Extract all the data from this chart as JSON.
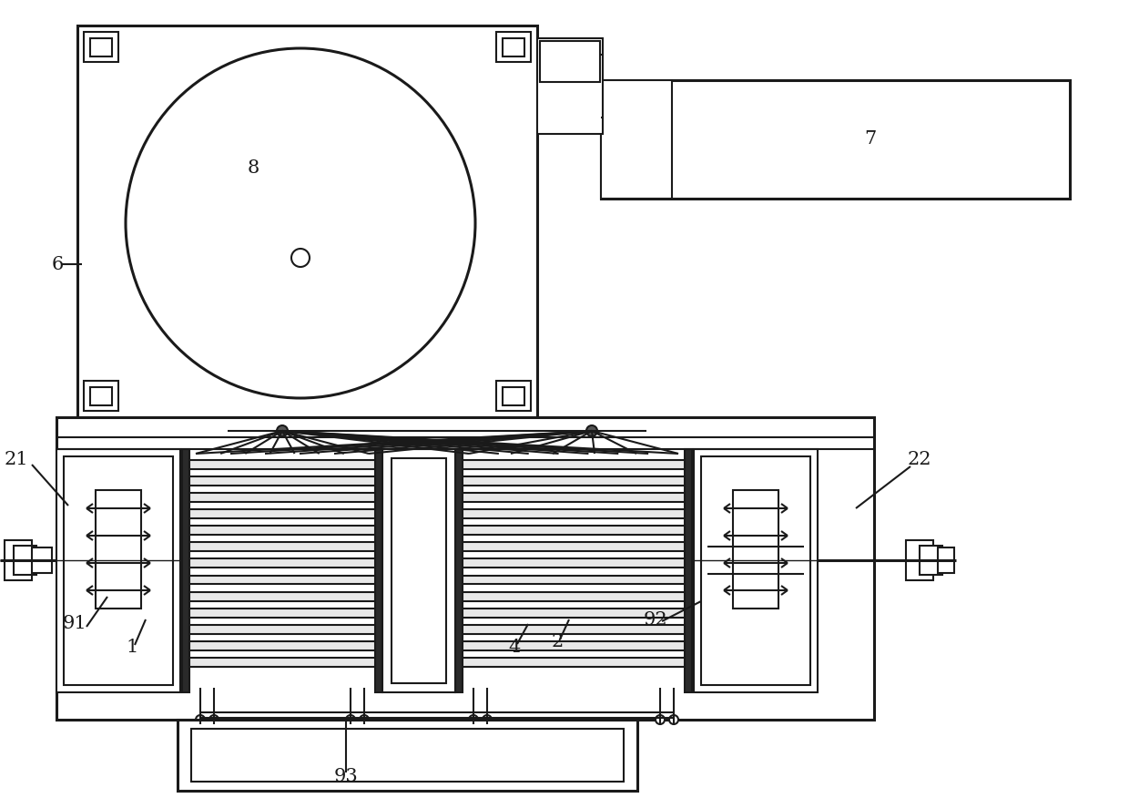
{
  "bg_color": "#ffffff",
  "line_color": "#1a1a1a",
  "lw": 1.5,
  "tlw": 2.2,
  "fs": 15
}
